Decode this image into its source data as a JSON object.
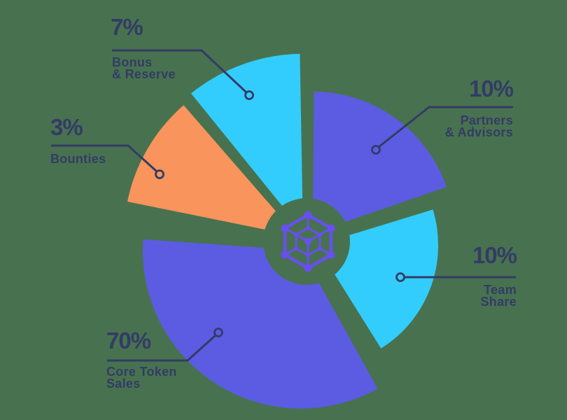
{
  "chart_data": {
    "type": "pie",
    "title": "",
    "unit": "%",
    "slices": [
      {
        "id": "bonus_reserve",
        "label": "Bonus & Reserve",
        "value": 7,
        "color": "#32cdfc"
      },
      {
        "id": "partners_advisors",
        "label": "Partners & Advisors",
        "value": 10,
        "color": "#5b5ce2"
      },
      {
        "id": "team_share",
        "label": "Team Share",
        "value": 10,
        "color": "#32cdfc"
      },
      {
        "id": "core_token_sales",
        "label": "Core Token Sales",
        "value": 70,
        "color": "#5b5ce2"
      },
      {
        "id": "bounties",
        "label": "Bounties",
        "value": 3,
        "color": "#f9945c"
      }
    ],
    "legend_position": "callouts-around-pie",
    "center_icon": "network-hexagon-icon",
    "layout_hints": {
      "center": [
        438,
        345
      ],
      "hole_radius": 62,
      "explode": 15,
      "grid": false,
      "wedges": {
        "bonus_reserve": {
          "start": 91,
          "end": 129,
          "r": 254
        },
        "bounties": {
          "start": 131,
          "end": 168.5,
          "r": 248
        },
        "core_token_sales": {
          "start": 176,
          "end": 299,
          "r": 226
        },
        "team_share": {
          "start": -58,
          "end": 17,
          "r": 174
        },
        "partners_advisors": {
          "start": 19,
          "end": 89.5,
          "r": 202
        }
      }
    }
  },
  "callouts": {
    "bonus_reserve": {
      "pct": "7%",
      "lines": [
        "Bonus",
        "& Reserve"
      ]
    },
    "partners_advisors": {
      "pct": "10%",
      "lines": [
        "Partners",
        "& Advisors"
      ]
    },
    "team_share": {
      "pct": "10%",
      "lines": [
        "Team",
        "Share"
      ]
    },
    "core_token_sales": {
      "pct": "70%",
      "lines": [
        "Core Token",
        "Sales"
      ]
    },
    "bounties": {
      "pct": "3%",
      "lines": [
        "Bounties"
      ]
    }
  },
  "colors": {
    "background": "#48724f",
    "ink": "#333b66",
    "icon": "#684ff1",
    "cyan": "#32cdfc",
    "purple": "#5b5ce2",
    "orange": "#f9945c"
  }
}
